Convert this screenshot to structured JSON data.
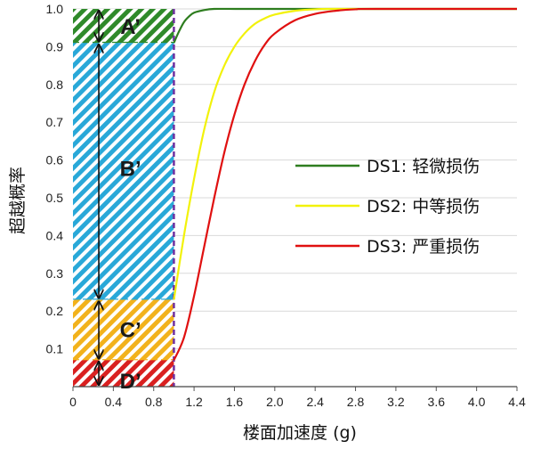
{
  "chart_data": {
    "type": "line",
    "xlabel": "楼面加速度 (g)",
    "ylabel": "超越概率",
    "xlim": [
      0,
      4.4
    ],
    "ylim": [
      0,
      1.0
    ],
    "x_ticks": [
      "0",
      "0.4",
      "0.8",
      "1.2",
      "1.6",
      "2.0",
      "2.4",
      "2.8",
      "3.2",
      "3.6",
      "4.0",
      "4.4"
    ],
    "y_ticks": [
      "0.1",
      "0.2",
      "0.3",
      "0.4",
      "0.5",
      "0.6",
      "0.7",
      "0.8",
      "0.9",
      "1.0"
    ],
    "grid": "horizontal",
    "legend_position": "right",
    "series": [
      {
        "name": "DS1: 轻微损伤",
        "color": "#2e7d1f",
        "x": [
          1.0,
          1.05,
          1.1,
          1.15,
          1.2,
          1.3,
          1.4,
          1.6,
          2.0,
          4.4
        ],
        "y": [
          0.91,
          0.94,
          0.965,
          0.98,
          0.99,
          0.997,
          1.0,
          1.0,
          1.0,
          1.0
        ]
      },
      {
        "name": "DS2: 中等损伤",
        "color": "#f2f20a",
        "x": [
          1.0,
          1.1,
          1.2,
          1.3,
          1.4,
          1.5,
          1.6,
          1.7,
          1.8,
          1.9,
          2.0,
          2.2,
          2.4,
          2.6,
          2.8,
          4.4
        ],
        "y": [
          0.23,
          0.4,
          0.55,
          0.68,
          0.78,
          0.85,
          0.9,
          0.935,
          0.96,
          0.975,
          0.985,
          0.995,
          0.999,
          1.0,
          1.0,
          1.0
        ]
      },
      {
        "name": "DS3: 严重损伤",
        "color": "#e01010",
        "x": [
          1.0,
          1.1,
          1.2,
          1.3,
          1.4,
          1.5,
          1.6,
          1.7,
          1.8,
          1.9,
          2.0,
          2.2,
          2.4,
          2.6,
          2.8,
          3.0,
          4.4
        ],
        "y": [
          0.07,
          0.13,
          0.24,
          0.37,
          0.5,
          0.62,
          0.72,
          0.8,
          0.86,
          0.905,
          0.935,
          0.97,
          0.987,
          0.995,
          0.999,
          1.0,
          1.0
        ]
      }
    ],
    "threshold_x": 1.0,
    "zones": [
      {
        "label": "A’",
        "y0": 0.91,
        "y1": 1.0,
        "color": "#2f8a2a"
      },
      {
        "label": "B’",
        "y0": 0.23,
        "y1": 0.91,
        "color": "#29a8d8"
      },
      {
        "label": "C’",
        "y0": 0.07,
        "y1": 0.23,
        "color": "#f2b21c"
      },
      {
        "label": "D’",
        "y0": 0.0,
        "y1": 0.07,
        "color": "#d92020"
      }
    ],
    "threshold_color": "#7030a0"
  }
}
